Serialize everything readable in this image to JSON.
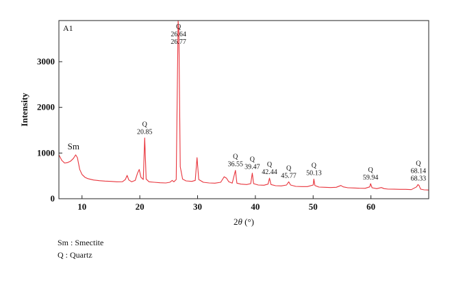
{
  "chart_data": {
    "type": "line",
    "panel_label": "A1",
    "xlabel_prefix": "2",
    "xlabel_theta": "θ",
    "xlabel_suffix": " (°)",
    "ylabel": "Intensity",
    "xlim": [
      6,
      70
    ],
    "ylim": [
      0,
      3900
    ],
    "x_ticks": [
      10,
      20,
      30,
      40,
      50,
      60
    ],
    "y_ticks": [
      0,
      1000,
      2000,
      3000
    ],
    "grid": false,
    "line_color": "#e8323a",
    "series": [
      {
        "points": [
          [
            6.0,
            960
          ],
          [
            6.5,
            840
          ],
          [
            7.0,
            780
          ],
          [
            7.5,
            790
          ],
          [
            8.0,
            820
          ],
          [
            8.5,
            880
          ],
          [
            8.9,
            960
          ],
          [
            9.2,
            900
          ],
          [
            9.6,
            640
          ],
          [
            10.0,
            530
          ],
          [
            10.5,
            470
          ],
          [
            11,
            440
          ],
          [
            12,
            410
          ],
          [
            13,
            395
          ],
          [
            14,
            385
          ],
          [
            15,
            380
          ],
          [
            16,
            370
          ],
          [
            17,
            372
          ],
          [
            17.5,
            420
          ],
          [
            17.8,
            510
          ],
          [
            18.1,
            410
          ],
          [
            18.6,
            370
          ],
          [
            19.2,
            400
          ],
          [
            19.6,
            560
          ],
          [
            19.9,
            640
          ],
          [
            20.2,
            470
          ],
          [
            20.6,
            420
          ],
          [
            20.85,
            1330
          ],
          [
            21.1,
            430
          ],
          [
            21.6,
            370
          ],
          [
            22.5,
            360
          ],
          [
            23.5,
            350
          ],
          [
            24.5,
            345
          ],
          [
            25.2,
            360
          ],
          [
            25.6,
            400
          ],
          [
            25.9,
            370
          ],
          [
            26.3,
            420
          ],
          [
            26.64,
            3890
          ],
          [
            26.77,
            3650
          ],
          [
            27.0,
            700
          ],
          [
            27.4,
            430
          ],
          [
            28,
            390
          ],
          [
            29,
            380
          ],
          [
            29.6,
            400
          ],
          [
            29.9,
            900
          ],
          [
            30.2,
            420
          ],
          [
            31,
            360
          ],
          [
            32,
            345
          ],
          [
            33,
            340
          ],
          [
            34,
            360
          ],
          [
            34.6,
            480
          ],
          [
            35.0,
            450
          ],
          [
            35.4,
            370
          ],
          [
            36.0,
            340
          ],
          [
            36.55,
            620
          ],
          [
            36.8,
            340
          ],
          [
            37.5,
            320
          ],
          [
            38.5,
            310
          ],
          [
            39.2,
            330
          ],
          [
            39.47,
            560
          ],
          [
            39.7,
            330
          ],
          [
            40.5,
            300
          ],
          [
            41.5,
            295
          ],
          [
            42.2,
            320
          ],
          [
            42.44,
            450
          ],
          [
            42.7,
            310
          ],
          [
            43.5,
            285
          ],
          [
            44.5,
            280
          ],
          [
            45.4,
            300
          ],
          [
            45.77,
            370
          ],
          [
            46.1,
            300
          ],
          [
            47,
            270
          ],
          [
            48,
            265
          ],
          [
            49,
            265
          ],
          [
            50.0,
            300
          ],
          [
            50.13,
            430
          ],
          [
            50.3,
            290
          ],
          [
            51,
            255
          ],
          [
            52,
            250
          ],
          [
            53,
            245
          ],
          [
            54,
            250
          ],
          [
            54.8,
            290
          ],
          [
            55.2,
            260
          ],
          [
            56,
            240
          ],
          [
            57,
            235
          ],
          [
            58,
            230
          ],
          [
            59,
            228
          ],
          [
            59.8,
            260
          ],
          [
            59.94,
            330
          ],
          [
            60.2,
            240
          ],
          [
            61,
            220
          ],
          [
            61.8,
            245
          ],
          [
            62.3,
            220
          ],
          [
            63,
            210
          ],
          [
            64,
            208
          ],
          [
            65,
            205
          ],
          [
            66,
            205
          ],
          [
            67,
            200
          ],
          [
            67.9,
            260
          ],
          [
            68.14,
            310
          ],
          [
            68.33,
            290
          ],
          [
            68.6,
            210
          ],
          [
            69.2,
            195
          ],
          [
            70.0,
            190
          ]
        ]
      }
    ],
    "annotations": [
      {
        "x": 9.0,
        "text": [
          "Sm"
        ],
        "anchor_y": 960,
        "large": true
      },
      {
        "x": 20.85,
        "text": [
          "Q",
          "20.85"
        ],
        "anchor_y": 1330
      },
      {
        "x": 26.7,
        "text": [
          "Q",
          "26.64",
          "26.77"
        ],
        "anchor_y": 3890
      },
      {
        "x": 36.55,
        "text": [
          "Q",
          "36.55"
        ],
        "anchor_y": 620
      },
      {
        "x": 39.47,
        "text": [
          "Q",
          "39.47"
        ],
        "anchor_y": 560
      },
      {
        "x": 42.44,
        "text": [
          "Q",
          "42.44"
        ],
        "anchor_y": 450
      },
      {
        "x": 45.77,
        "text": [
          "Q",
          "45.77"
        ],
        "anchor_y": 370
      },
      {
        "x": 50.13,
        "text": [
          "Q",
          "50.13"
        ],
        "anchor_y": 430
      },
      {
        "x": 59.94,
        "text": [
          "Q",
          "59.94"
        ],
        "anchor_y": 330
      },
      {
        "x": 68.2,
        "text": [
          "Q",
          "68.14",
          "68.33"
        ],
        "anchor_y": 310
      }
    ]
  },
  "legend_notes": {
    "smectite": "Sm : Smectite",
    "quartz": "Q : Quartz"
  }
}
